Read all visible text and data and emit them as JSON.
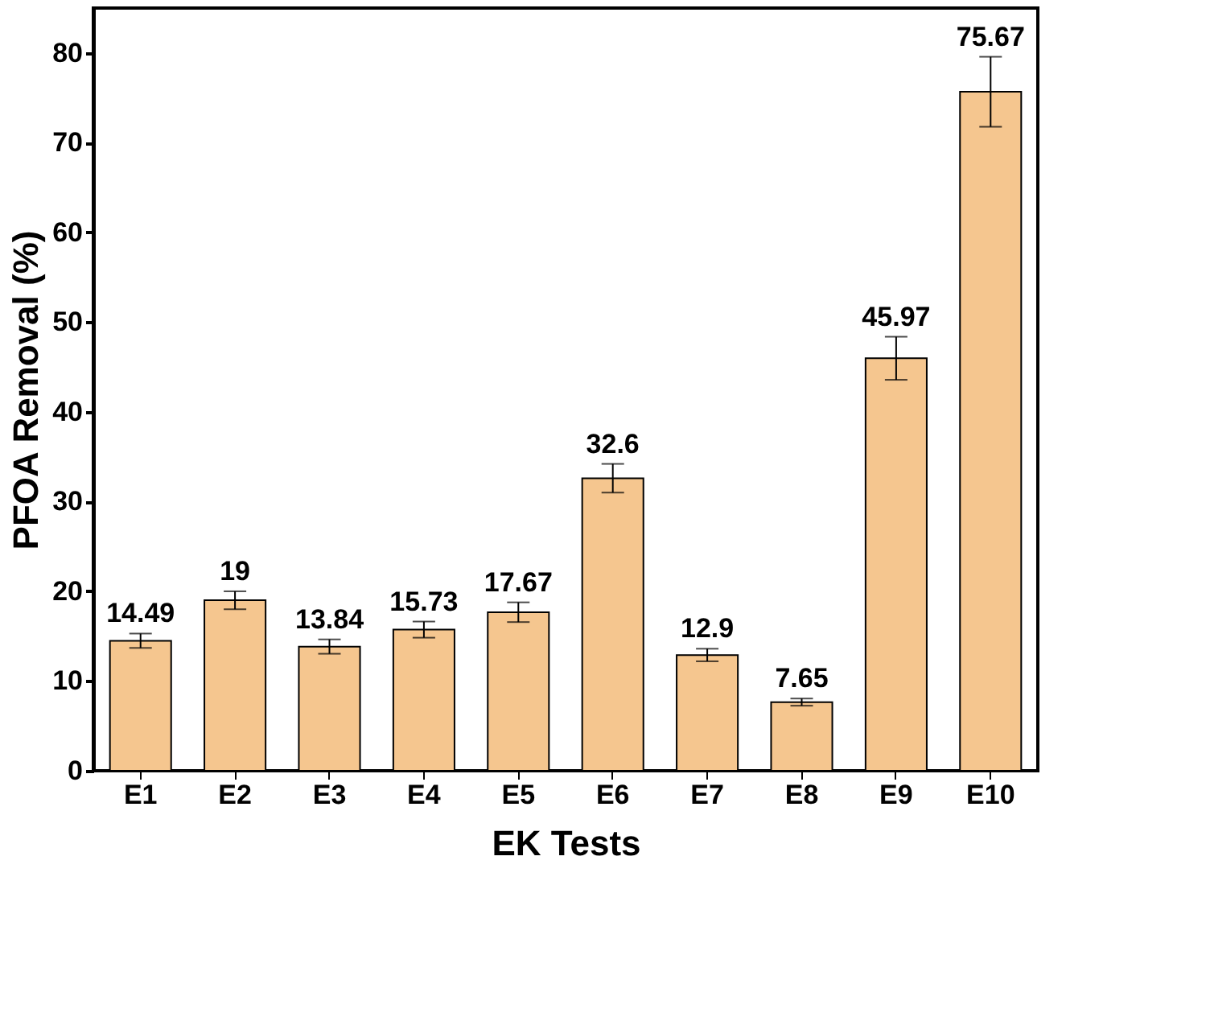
{
  "chart_data": {
    "type": "bar",
    "xlabel": "EK Tests",
    "ylabel": "PFOA Removal (%)",
    "categories": [
      "E1",
      "E2",
      "E3",
      "E4",
      "E5",
      "E6",
      "E7",
      "E8",
      "E9",
      "E10"
    ],
    "values": [
      14.49,
      19,
      13.84,
      15.73,
      17.67,
      32.6,
      12.9,
      7.65,
      45.97,
      75.67
    ],
    "errors": [
      0.8,
      1.0,
      0.8,
      0.9,
      1.1,
      1.6,
      0.7,
      0.4,
      2.4,
      3.9
    ],
    "color": "#f5c68f",
    "ylim": [
      0,
      85
    ],
    "yticks": [
      0,
      10,
      20,
      30,
      40,
      50,
      60,
      70,
      80
    ],
    "data_labels": true,
    "grid": false
  }
}
